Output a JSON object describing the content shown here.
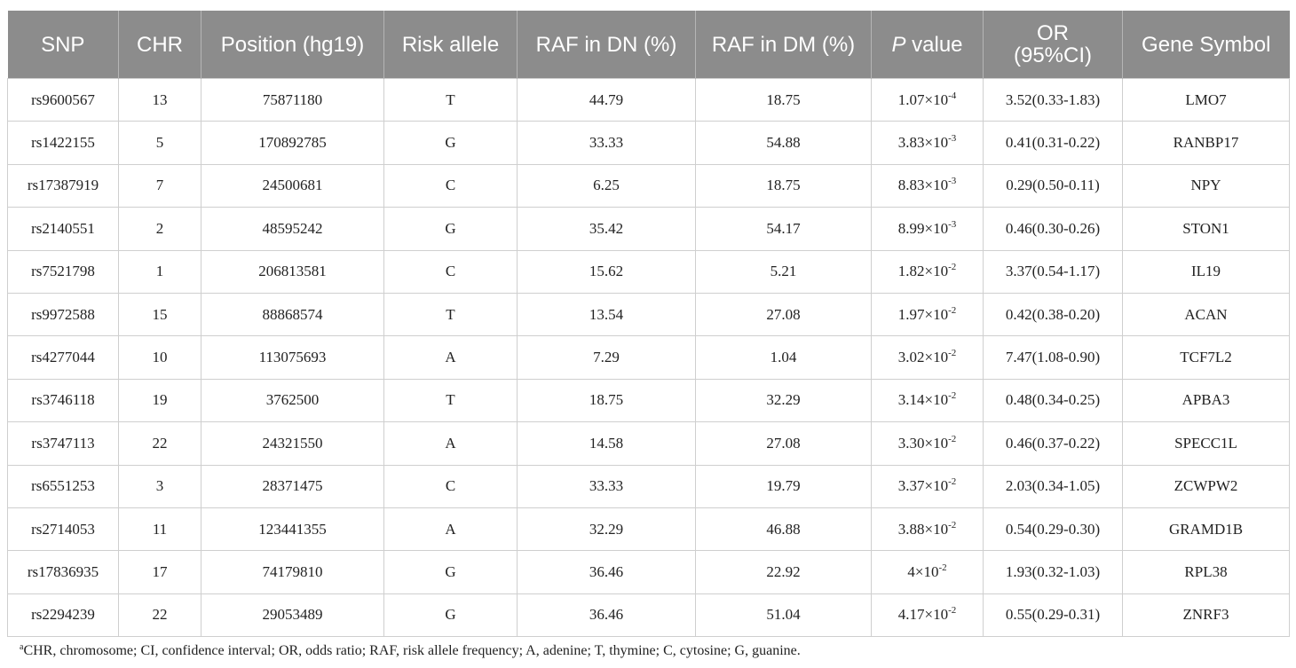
{
  "table": {
    "headers": {
      "snp": "SNP",
      "chr": "CHR",
      "position": "Position (hg19)",
      "risk_allele": "Risk allele",
      "raf_dn": "RAF in DN (%)",
      "raf_dm": "RAF in DM (%)",
      "p_value_italic": "P",
      "p_value_rest": " value",
      "or_line1": "OR",
      "or_line2": "(95%CI)",
      "gene": "Gene Symbol"
    },
    "rows": [
      {
        "snp": "rs9600567",
        "chr": "13",
        "position": "75871180",
        "allele": "T",
        "raf_dn": "44.79",
        "raf_dm": "18.75",
        "p_base": "1.07×10",
        "p_exp": "-4",
        "or": "3.52(0.33-1.83)",
        "gene": "LMO7"
      },
      {
        "snp": "rs1422155",
        "chr": "5",
        "position": "170892785",
        "allele": "G",
        "raf_dn": "33.33",
        "raf_dm": "54.88",
        "p_base": "3.83×10",
        "p_exp": "-3",
        "or": "0.41(0.31-0.22)",
        "gene": "RANBP17"
      },
      {
        "snp": "rs17387919",
        "chr": "7",
        "position": "24500681",
        "allele": "C",
        "raf_dn": "6.25",
        "raf_dm": "18.75",
        "p_base": "8.83×10",
        "p_exp": "-3",
        "or": "0.29(0.50-0.11)",
        "gene": "NPY"
      },
      {
        "snp": "rs2140551",
        "chr": "2",
        "position": "48595242",
        "allele": "G",
        "raf_dn": "35.42",
        "raf_dm": "54.17",
        "p_base": "8.99×10",
        "p_exp": "-3",
        "or": "0.46(0.30-0.26)",
        "gene": "STON1"
      },
      {
        "snp": "rs7521798",
        "chr": "1",
        "position": "206813581",
        "allele": "C",
        "raf_dn": "15.62",
        "raf_dm": "5.21",
        "p_base": "1.82×10",
        "p_exp": "-2",
        "or": "3.37(0.54-1.17)",
        "gene": "IL19"
      },
      {
        "snp": "rs9972588",
        "chr": "15",
        "position": "88868574",
        "allele": "T",
        "raf_dn": "13.54",
        "raf_dm": "27.08",
        "p_base": "1.97×10",
        "p_exp": "-2",
        "or": "0.42(0.38-0.20)",
        "gene": "ACAN"
      },
      {
        "snp": "rs4277044",
        "chr": "10",
        "position": "113075693",
        "allele": "A",
        "raf_dn": "7.29",
        "raf_dm": "1.04",
        "p_base": "3.02×10",
        "p_exp": "-2",
        "or": "7.47(1.08-0.90)",
        "gene": "TCF7L2"
      },
      {
        "snp": "rs3746118",
        "chr": "19",
        "position": "3762500",
        "allele": "T",
        "raf_dn": "18.75",
        "raf_dm": "32.29",
        "p_base": "3.14×10",
        "p_exp": "-2",
        "or": "0.48(0.34-0.25)",
        "gene": "APBA3"
      },
      {
        "snp": "rs3747113",
        "chr": "22",
        "position": "24321550",
        "allele": "A",
        "raf_dn": "14.58",
        "raf_dm": "27.08",
        "p_base": "3.30×10",
        "p_exp": "-2",
        "or": "0.46(0.37-0.22)",
        "gene": "SPECC1L"
      },
      {
        "snp": "rs6551253",
        "chr": "3",
        "position": "28371475",
        "allele": "C",
        "raf_dn": "33.33",
        "raf_dm": "19.79",
        "p_base": "3.37×10",
        "p_exp": "-2",
        "or": "2.03(0.34-1.05)",
        "gene": "ZCWPW2"
      },
      {
        "snp": "rs2714053",
        "chr": "11",
        "position": "123441355",
        "allele": "A",
        "raf_dn": "32.29",
        "raf_dm": "46.88",
        "p_base": "3.88×10",
        "p_exp": "-2",
        "or": "0.54(0.29-0.30)",
        "gene": "GRAMD1B"
      },
      {
        "snp": "rs17836935",
        "chr": "17",
        "position": "74179810",
        "allele": "G",
        "raf_dn": "36.46",
        "raf_dm": "22.92",
        "p_base": "4×10",
        "p_exp": "-2",
        "or": "1.93(0.32-1.03)",
        "gene": "RPL38"
      },
      {
        "snp": "rs2294239",
        "chr": "22",
        "position": "29053489",
        "allele": "G",
        "raf_dn": "36.46",
        "raf_dm": "51.04",
        "p_base": "4.17×10",
        "p_exp": "-2",
        "or": "0.55(0.29-0.31)",
        "gene": "ZNRF3"
      }
    ]
  },
  "footnote": {
    "marker": "a",
    "text": "CHR, chromosome; CI, confidence interval; OR, odds ratio; RAF, risk allele frequency; A, adenine; T, thymine; C, cytosine; G, guanine."
  }
}
